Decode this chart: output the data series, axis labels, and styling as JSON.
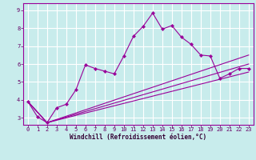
{
  "xlabel": "Windchill (Refroidissement éolien,°C)",
  "bg_color": "#c8ecec",
  "grid_color": "#b0d8d8",
  "line_color": "#990099",
  "xlim": [
    -0.5,
    23.5
  ],
  "ylim": [
    2.6,
    9.4
  ],
  "yticks": [
    3,
    4,
    5,
    6,
    7,
    8,
    9
  ],
  "xticks": [
    0,
    1,
    2,
    3,
    4,
    5,
    6,
    7,
    8,
    9,
    10,
    11,
    12,
    13,
    14,
    15,
    16,
    17,
    18,
    19,
    20,
    21,
    22,
    23
  ],
  "series1_x": [
    0,
    1,
    2,
    3,
    4,
    5,
    6,
    7,
    8,
    9,
    10,
    11,
    12,
    13,
    14,
    15,
    16,
    17,
    18,
    19,
    20,
    21,
    22,
    23
  ],
  "series1_y": [
    3.9,
    3.05,
    2.72,
    3.55,
    3.75,
    4.55,
    5.95,
    5.75,
    5.6,
    5.45,
    6.45,
    7.55,
    8.1,
    8.85,
    7.95,
    8.15,
    7.5,
    7.1,
    6.5,
    6.45,
    5.2,
    5.45,
    5.75,
    5.75
  ],
  "series2_x": [
    0,
    2,
    23
  ],
  "series2_y": [
    3.9,
    2.72,
    6.5
  ],
  "series3_x": [
    0,
    2,
    23
  ],
  "series3_y": [
    3.9,
    2.72,
    6.0
  ],
  "series4_x": [
    0,
    2,
    23
  ],
  "series4_y": [
    3.9,
    2.72,
    5.55
  ]
}
